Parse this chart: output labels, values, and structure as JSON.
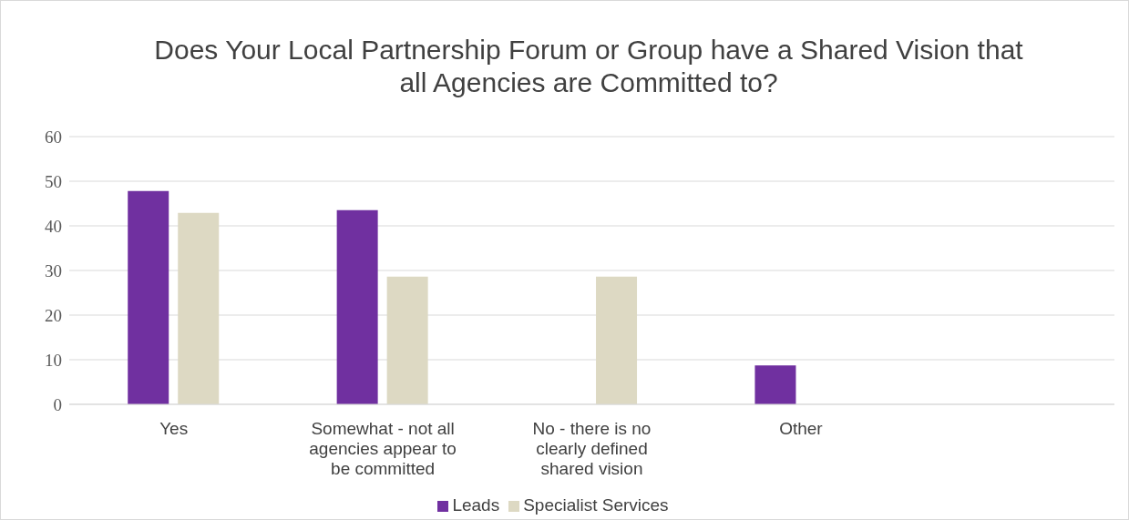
{
  "chart_data": {
    "type": "bar",
    "title": "Does Your Local Partnership Forum or Group have a Shared Vision that all Agencies are Committed to?",
    "categories": [
      "Yes",
      "Somewhat - not all agencies appear to be committed",
      "No - there is no clearly defined shared vision",
      "Other",
      null
    ],
    "series": [
      {
        "name": "Leads",
        "color": "#7030a0",
        "values": [
          47.8,
          43.5,
          0,
          8.7,
          null
        ]
      },
      {
        "name": "Specialist Services",
        "color": "#ddd9c3",
        "values": [
          42.9,
          28.6,
          28.6,
          0,
          null
        ]
      }
    ],
    "ylim": [
      0,
      60
    ],
    "yticks": [
      0,
      10,
      20,
      30,
      40,
      50,
      60
    ],
    "grid": "y",
    "legend": "bottom"
  }
}
